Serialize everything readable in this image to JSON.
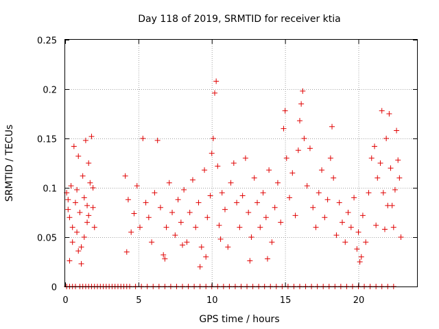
{
  "chart_data": {
    "type": "scatter",
    "title": "Day 118 of 2019, SRMTID for receiver ktia",
    "xlabel": "GPS time / hours",
    "ylabel": "SRMTID / TECUs",
    "xlim": [
      0,
      24
    ],
    "ylim": [
      0,
      0.25
    ],
    "xticks": [
      0,
      5,
      10,
      15,
      20
    ],
    "xtick_labels": [
      "0",
      "5",
      "10",
      "15",
      "20"
    ],
    "yticks": [
      0,
      0.05,
      0.1,
      0.15,
      0.2,
      0.25
    ],
    "ytick_labels": [
      "0",
      "0.05",
      "0.1",
      "0.15",
      "0.2",
      "0.25"
    ],
    "grid": true,
    "marker": "+",
    "series": [
      {
        "name": "SRMTID",
        "color": "#e00000",
        "zero_points_x": [
          0.1,
          0.3,
          0.5,
          0.7,
          1.0,
          1.2,
          1.4,
          1.6,
          1.8,
          2.0,
          2.2,
          2.4,
          2.6,
          2.8,
          3.0,
          3.2,
          3.4,
          3.6,
          3.8,
          4.0,
          4.2,
          4.4,
          4.8,
          5.2,
          5.6,
          6.0,
          6.4,
          6.8,
          7.2,
          7.6,
          8.0,
          8.4,
          8.8,
          9.2,
          9.6,
          10.0,
          10.4,
          10.8,
          11.2,
          11.6,
          12.0,
          12.4,
          12.8,
          13.2,
          13.6,
          14.0,
          14.4,
          14.8,
          15.2,
          15.6,
          16.0,
          16.4,
          16.8,
          17.2,
          17.6,
          18.0,
          18.4,
          18.8,
          19.2,
          19.6,
          20.0,
          20.4,
          20.8,
          21.2,
          21.6,
          22.0,
          22.4
        ],
        "points": [
          [
            0.1,
            0.095
          ],
          [
            0.2,
            0.088
          ],
          [
            0.3,
            0.07
          ],
          [
            0.4,
            0.102
          ],
          [
            0.5,
            0.06
          ],
          [
            0.6,
            0.142
          ],
          [
            0.7,
            0.085
          ],
          [
            0.8,
            0.055
          ],
          [
            0.9,
            0.132
          ],
          [
            1.0,
            0.075
          ],
          [
            1.1,
            0.04
          ],
          [
            1.2,
            0.112
          ],
          [
            1.3,
            0.09
          ],
          [
            1.4,
            0.148
          ],
          [
            1.5,
            0.065
          ],
          [
            1.6,
            0.125
          ],
          [
            1.7,
            0.105
          ],
          [
            1.8,
            0.152
          ],
          [
            1.9,
            0.08
          ],
          [
            2.0,
            0.06
          ],
          [
            0.3,
            0.026
          ],
          [
            0.5,
            0.045
          ],
          [
            0.9,
            0.036
          ],
          [
            1.1,
            0.023
          ],
          [
            1.3,
            0.05
          ],
          [
            1.6,
            0.072
          ],
          [
            1.9,
            0.1
          ],
          [
            0.2,
            0.078
          ],
          [
            0.8,
            0.098
          ],
          [
            1.5,
            0.082
          ],
          [
            4.1,
            0.112
          ],
          [
            4.3,
            0.088
          ],
          [
            4.5,
            0.055
          ],
          [
            4.7,
            0.074
          ],
          [
            4.9,
            0.102
          ],
          [
            5.1,
            0.06
          ],
          [
            5.3,
            0.15
          ],
          [
            5.5,
            0.085
          ],
          [
            5.7,
            0.07
          ],
          [
            5.9,
            0.045
          ],
          [
            6.1,
            0.095
          ],
          [
            6.3,
            0.148
          ],
          [
            6.5,
            0.08
          ],
          [
            6.7,
            0.032
          ],
          [
            6.9,
            0.06
          ],
          [
            7.1,
            0.105
          ],
          [
            7.3,
            0.075
          ],
          [
            7.5,
            0.052
          ],
          [
            7.7,
            0.088
          ],
          [
            7.9,
            0.065
          ],
          [
            8.1,
            0.098
          ],
          [
            8.3,
            0.045
          ],
          [
            8.5,
            0.075
          ],
          [
            8.7,
            0.108
          ],
          [
            8.9,
            0.06
          ],
          [
            9.1,
            0.085
          ],
          [
            9.3,
            0.04
          ],
          [
            9.5,
            0.118
          ],
          [
            9.7,
            0.07
          ],
          [
            9.9,
            0.092
          ],
          [
            10.0,
            0.135
          ],
          [
            10.1,
            0.15
          ],
          [
            10.2,
            0.196
          ],
          [
            10.3,
            0.208
          ],
          [
            10.4,
            0.122
          ],
          [
            10.5,
            0.062
          ],
          [
            10.7,
            0.095
          ],
          [
            10.9,
            0.078
          ],
          [
            11.1,
            0.04
          ],
          [
            11.3,
            0.105
          ],
          [
            9.2,
            0.02
          ],
          [
            9.6,
            0.03
          ],
          [
            4.2,
            0.035
          ],
          [
            6.8,
            0.028
          ],
          [
            8.0,
            0.042
          ],
          [
            10.6,
            0.048
          ],
          [
            11.5,
            0.125
          ],
          [
            11.7,
            0.085
          ],
          [
            11.9,
            0.06
          ],
          [
            12.1,
            0.092
          ],
          [
            12.3,
            0.13
          ],
          [
            12.5,
            0.075
          ],
          [
            12.7,
            0.05
          ],
          [
            12.9,
            0.11
          ],
          [
            13.1,
            0.085
          ],
          [
            13.3,
            0.06
          ],
          [
            13.5,
            0.095
          ],
          [
            13.7,
            0.07
          ],
          [
            13.9,
            0.118
          ],
          [
            14.1,
            0.045
          ],
          [
            12.6,
            0.026
          ],
          [
            13.8,
            0.028
          ],
          [
            14.3,
            0.08
          ],
          [
            14.5,
            0.105
          ],
          [
            14.7,
            0.065
          ],
          [
            14.9,
            0.16
          ],
          [
            15.0,
            0.178
          ],
          [
            15.1,
            0.13
          ],
          [
            15.3,
            0.09
          ],
          [
            15.5,
            0.115
          ],
          [
            15.7,
            0.072
          ],
          [
            15.9,
            0.138
          ],
          [
            16.0,
            0.168
          ],
          [
            16.1,
            0.185
          ],
          [
            16.2,
            0.198
          ],
          [
            16.3,
            0.15
          ],
          [
            16.5,
            0.102
          ],
          [
            16.7,
            0.14
          ],
          [
            16.9,
            0.08
          ],
          [
            17.1,
            0.06
          ],
          [
            17.3,
            0.095
          ],
          [
            17.5,
            0.118
          ],
          [
            17.7,
            0.07
          ],
          [
            17.9,
            0.088
          ],
          [
            18.1,
            0.13
          ],
          [
            18.2,
            0.162
          ],
          [
            18.3,
            0.11
          ],
          [
            18.5,
            0.052
          ],
          [
            18.7,
            0.085
          ],
          [
            18.9,
            0.065
          ],
          [
            19.1,
            0.045
          ],
          [
            19.3,
            0.075
          ],
          [
            19.5,
            0.06
          ],
          [
            19.7,
            0.09
          ],
          [
            19.9,
            0.038
          ],
          [
            20.0,
            0.055
          ],
          [
            20.1,
            0.025
          ],
          [
            20.2,
            0.03
          ],
          [
            20.3,
            0.072
          ],
          [
            20.5,
            0.045
          ],
          [
            20.7,
            0.095
          ],
          [
            20.9,
            0.13
          ],
          [
            21.1,
            0.142
          ],
          [
            21.3,
            0.11
          ],
          [
            21.5,
            0.125
          ],
          [
            21.6,
            0.178
          ],
          [
            21.7,
            0.095
          ],
          [
            21.9,
            0.15
          ],
          [
            22.1,
            0.175
          ],
          [
            22.2,
            0.12
          ],
          [
            22.3,
            0.082
          ],
          [
            22.4,
            0.06
          ],
          [
            22.5,
            0.098
          ],
          [
            22.6,
            0.158
          ],
          [
            22.7,
            0.128
          ],
          [
            22.8,
            0.11
          ],
          [
            22.9,
            0.05
          ],
          [
            21.8,
            0.058
          ],
          [
            22.0,
            0.082
          ],
          [
            21.2,
            0.062
          ]
        ]
      }
    ]
  }
}
